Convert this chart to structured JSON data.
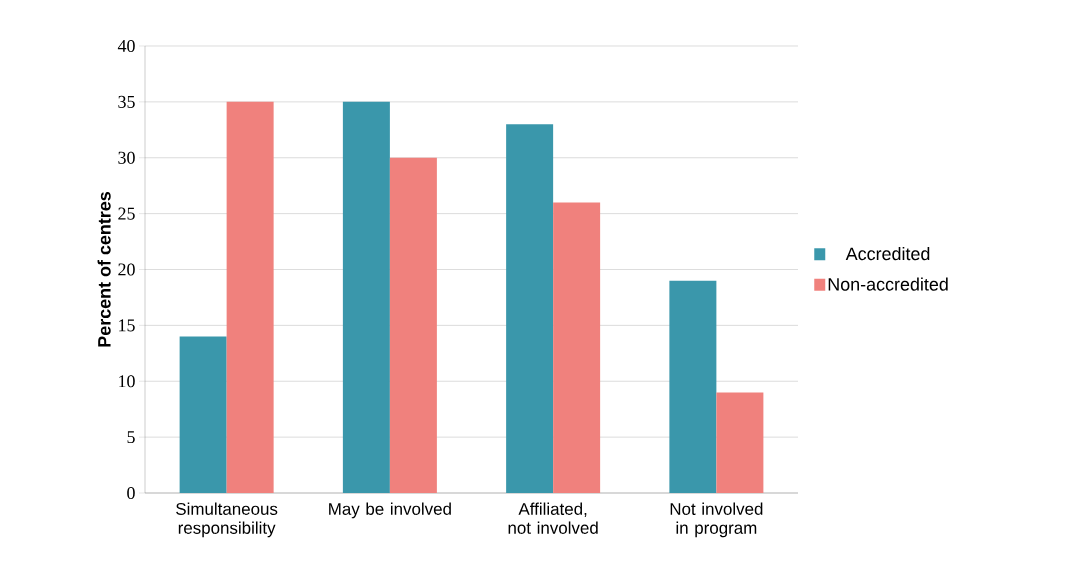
{
  "chart_data": {
    "type": "bar",
    "ylabel": "Percent of centres",
    "categories": [
      "Simultaneous responsibility",
      "May be involved",
      "Affiliated, not involved",
      "Not involved in program"
    ],
    "series": [
      {
        "name": "Accredited",
        "color": "#3a97ab",
        "values": [
          14,
          35,
          33,
          19
        ]
      },
      {
        "name": "Non-accredited",
        "color": "#f0817d",
        "values": [
          35,
          30,
          26,
          9
        ]
      }
    ],
    "ylim": [
      0,
      40
    ],
    "yticks": [
      0,
      5,
      10,
      15,
      20,
      25,
      30,
      35,
      40
    ],
    "grid": "y",
    "legend": "right"
  }
}
